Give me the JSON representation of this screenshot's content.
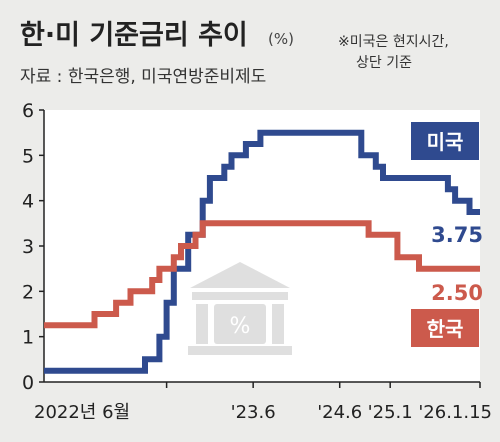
{
  "chart_data": {
    "type": "line",
    "title": "한·미 기준금리 추이",
    "unit": "(%)",
    "source": "자료 : 한국은행, 미국연방준비제도",
    "note_lines": [
      "※미국은 현지시간,",
      "상단 기준"
    ],
    "x_tick_labels": [
      "2022년 6월",
      "'23.6",
      "'24.6",
      "'25.1",
      "'26.1.15"
    ],
    "ylim": [
      0,
      6
    ],
    "y_ticks": [
      "0",
      "1",
      "2",
      "3",
      "4",
      "5",
      "6"
    ],
    "series": [
      {
        "name": "미국",
        "color": "#2f4a8f",
        "end_label": "3.75",
        "x": [
          "2021-01",
          "2022-03",
          "2022-05",
          "2022-06",
          "2022-07",
          "2022-09",
          "2022-11",
          "2022-12",
          "2023-02",
          "2023-03",
          "2023-05",
          "2023-07",
          "2024-09",
          "2024-11",
          "2024-12",
          "2025-09",
          "2025-10",
          "2025-12",
          "2026-01-15"
        ],
        "values": [
          0.25,
          0.5,
          1.0,
          1.75,
          2.5,
          3.25,
          4.0,
          4.5,
          4.75,
          5.0,
          5.25,
          5.5,
          5.0,
          4.75,
          4.5,
          4.25,
          4.0,
          3.75,
          3.75
        ]
      },
      {
        "name": "한국",
        "color": "#cc5a4c",
        "end_label": "2.50",
        "x": [
          "2021-01",
          "2021-08",
          "2021-11",
          "2022-01",
          "2022-04",
          "2022-05",
          "2022-07",
          "2022-08",
          "2022-10",
          "2022-11",
          "2023-01",
          "2024-10",
          "2024-11",
          "2025-02",
          "2025-05",
          "2026-01-15"
        ],
        "values": [
          1.25,
          1.5,
          1.75,
          2.0,
          2.25,
          2.5,
          2.75,
          3.0,
          3.25,
          3.5,
          3.5,
          3.25,
          3.25,
          2.75,
          2.5,
          2.5
        ]
      }
    ],
    "x_tick_dates": [
      "2022-06",
      "2023-06",
      "2024-06",
      "2025-01",
      "2026-01-15"
    ],
    "x_range": [
      "2021-01",
      "2026-01-15"
    ],
    "legend": [
      {
        "label": "미국",
        "color": "#2f4a8f"
      },
      {
        "label": "한국",
        "color": "#cc5a4c"
      }
    ],
    "grid": false
  }
}
